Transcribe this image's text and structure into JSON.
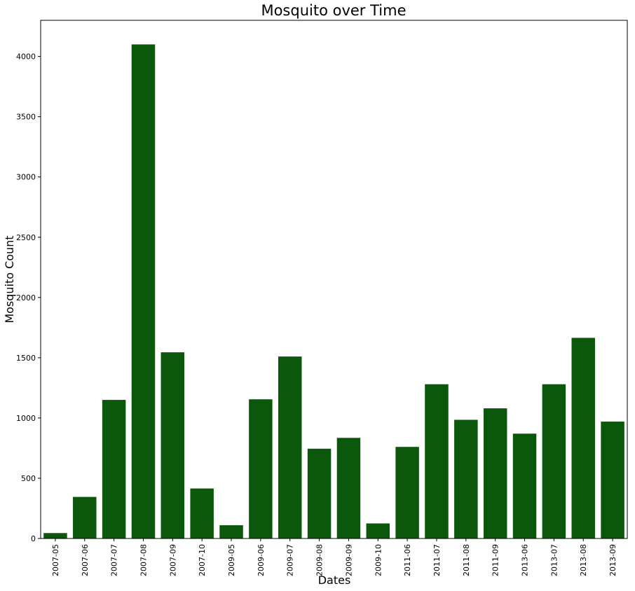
{
  "chart_data": {
    "type": "bar",
    "title": "Mosquito over Time",
    "xlabel": "Dates",
    "ylabel": "Mosquito Count",
    "categories": [
      "2007-05",
      "2007-06",
      "2007-07",
      "2007-08",
      "2007-09",
      "2007-10",
      "2009-05",
      "2009-06",
      "2009-07",
      "2009-08",
      "2009-09",
      "2009-10",
      "2011-06",
      "2011-07",
      "2011-08",
      "2011-09",
      "2013-06",
      "2013-07",
      "2013-08",
      "2013-09"
    ],
    "values": [
      45,
      345,
      1150,
      4100,
      1545,
      415,
      110,
      1155,
      1510,
      745,
      835,
      125,
      760,
      1280,
      985,
      1080,
      870,
      1280,
      1665,
      970
    ],
    "ylim": [
      0,
      4300
    ],
    "yticks": [
      0,
      500,
      1000,
      1500,
      2000,
      2500,
      3000,
      3500,
      4000
    ],
    "bar_color": "#0b580d",
    "grid": false,
    "legend": "none"
  }
}
